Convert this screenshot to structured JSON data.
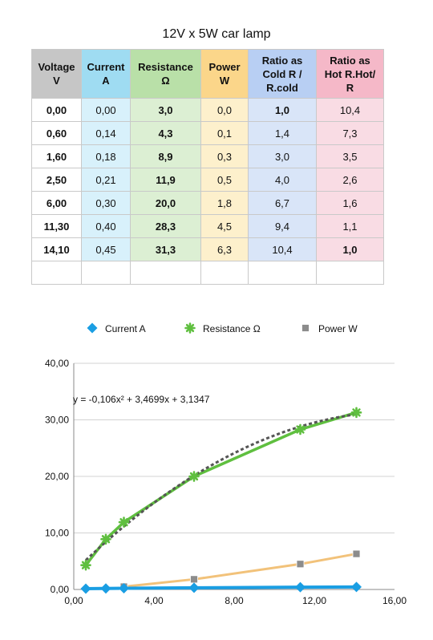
{
  "title": "12V x 5W car lamp",
  "table": {
    "headers": [
      [
        "Voltage",
        "V"
      ],
      [
        "Current",
        "A"
      ],
      [
        "Resistance",
        "Ω"
      ],
      [
        "Power",
        "W"
      ],
      [
        "Ratio as",
        "Cold R /",
        "R.cold"
      ],
      [
        "Ratio as",
        "Hot R.Hot/",
        "R"
      ]
    ],
    "rows": [
      [
        "0,00",
        "0,00",
        "3,0",
        "0,0",
        "1,0",
        "10,4"
      ],
      [
        "0,60",
        "0,14",
        "4,3",
        "0,1",
        "1,4",
        "7,3"
      ],
      [
        "1,60",
        "0,18",
        "8,9",
        "0,3",
        "3,0",
        "3,5"
      ],
      [
        "2,50",
        "0,21",
        "11,9",
        "0,5",
        "4,0",
        "2,6"
      ],
      [
        "6,00",
        "0,30",
        "20,0",
        "1,8",
        "6,7",
        "1,6"
      ],
      [
        "11,30",
        "0,40",
        "28,3",
        "4,5",
        "9,4",
        "1,1"
      ],
      [
        "14,10",
        "0,45",
        "31,3",
        "6,3",
        "10,4",
        "1,0"
      ]
    ]
  },
  "chart_data": {
    "type": "scatter",
    "legend_position": "top",
    "series": [
      {
        "name": "Current A",
        "color": "#1a9ee3",
        "marker": "diamond",
        "x": [
          0.6,
          1.6,
          2.5,
          6.0,
          11.3,
          14.1
        ],
        "y": [
          0.14,
          0.18,
          0.21,
          0.3,
          0.4,
          0.45
        ]
      },
      {
        "name": "Resistance Ω",
        "color": "#5fbf3f",
        "marker": "asterisk",
        "x": [
          0.6,
          1.6,
          2.5,
          6.0,
          11.3,
          14.1
        ],
        "y": [
          4.3,
          8.9,
          11.9,
          20.0,
          28.3,
          31.3
        ]
      },
      {
        "name": "Power W",
        "color": "#8c8c8c",
        "line_color": "#f2c27a",
        "marker": "square",
        "x": [
          2.5,
          6.0,
          11.3,
          14.1
        ],
        "y": [
          0.5,
          1.8,
          4.5,
          6.3
        ]
      }
    ],
    "trendline": {
      "equation": "y = -0,106x² + 3,4699x + 3,1347",
      "a": -0.106,
      "b": 3.4699,
      "c": 3.1347,
      "x_range": [
        0.6,
        14.1
      ],
      "color": "#555555"
    },
    "xlim": [
      0,
      16
    ],
    "ylim": [
      0,
      40
    ],
    "x_ticks": [
      "0,00",
      "4,00",
      "8,00",
      "12,00",
      "16,00"
    ],
    "y_ticks": [
      "0,00",
      "10,00",
      "20,00",
      "30,00",
      "40,00"
    ],
    "grid": "horizontal"
  }
}
